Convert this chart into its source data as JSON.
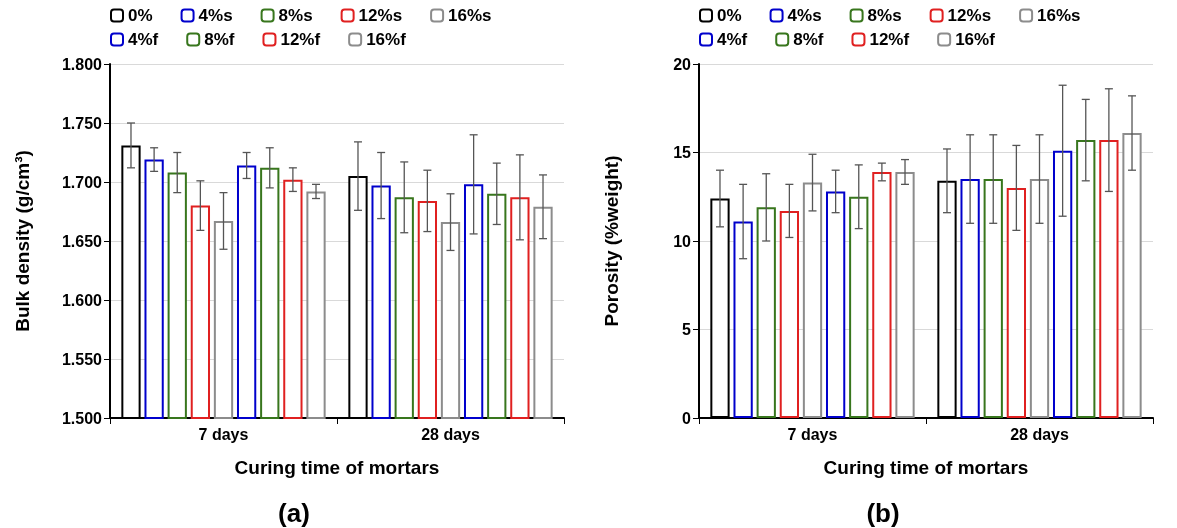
{
  "chart_data": [
    {
      "type": "bar",
      "categories": [
        "7 days",
        "28 days"
      ],
      "xlabel": "Curing time of mortars",
      "ylabel": "Bulk density (g/cm³)",
      "ylim": [
        1.5,
        1.8
      ],
      "yticks": [
        {
          "value": 1.5,
          "label": "1.500"
        },
        {
          "value": 1.55,
          "label": "1.550"
        },
        {
          "value": 1.6,
          "label": "1.600"
        },
        {
          "value": 1.65,
          "label": "1.650"
        },
        {
          "value": 1.7,
          "label": "1.700"
        },
        {
          "value": 1.75,
          "label": "1.750"
        },
        {
          "value": 1.8,
          "label": "1.800"
        }
      ],
      "grid": "y",
      "legend": "top",
      "annotations": [
        "(a)"
      ],
      "series": [
        {
          "name": "0%",
          "color": "#000000",
          "values": [
            1.731,
            1.705
          ],
          "errors": [
            0.019,
            0.029
          ]
        },
        {
          "name": "4%s",
          "color": "#0000cc",
          "values": [
            1.719,
            1.697
          ],
          "errors": [
            0.01,
            0.028
          ]
        },
        {
          "name": "8%s",
          "color": "#38761d",
          "values": [
            1.708,
            1.687
          ],
          "errors": [
            0.017,
            0.03
          ]
        },
        {
          "name": "12%s",
          "color": "#e02020",
          "values": [
            1.68,
            1.684
          ],
          "errors": [
            0.021,
            0.026
          ]
        },
        {
          "name": "16%s",
          "color": "#8c8c8c",
          "values": [
            1.667,
            1.666
          ],
          "errors": [
            0.024,
            0.024
          ]
        },
        {
          "name": "4%f",
          "color": "#0000cc",
          "values": [
            1.714,
            1.698
          ],
          "errors": [
            0.011,
            0.042
          ]
        },
        {
          "name": "8%f",
          "color": "#38761d",
          "values": [
            1.712,
            1.69
          ],
          "errors": [
            0.017,
            0.026
          ]
        },
        {
          "name": "12%f",
          "color": "#e02020",
          "values": [
            1.702,
            1.687
          ],
          "errors": [
            0.01,
            0.036
          ]
        },
        {
          "name": "16%f",
          "color": "#8c8c8c",
          "values": [
            1.692,
            1.679
          ],
          "errors": [
            0.006,
            0.027
          ]
        }
      ]
    },
    {
      "type": "bar",
      "categories": [
        "7 days",
        "28 days"
      ],
      "xlabel": "Curing time of mortars",
      "ylabel": "Porosity (%weight)",
      "ylim": [
        0,
        20
      ],
      "yticks": [
        0,
        5,
        10,
        15,
        20
      ],
      "grid": "y",
      "legend": "top",
      "annotations": [
        "(b)"
      ],
      "series": [
        {
          "name": "0%",
          "color": "#000000",
          "values": [
            12.4,
            13.4
          ],
          "errors": [
            1.6,
            1.8
          ]
        },
        {
          "name": "4%s",
          "color": "#0000cc",
          "values": [
            11.1,
            13.5
          ],
          "errors": [
            2.1,
            2.5
          ]
        },
        {
          "name": "8%s",
          "color": "#38761d",
          "values": [
            11.9,
            13.5
          ],
          "errors": [
            1.9,
            2.5
          ]
        },
        {
          "name": "12%s",
          "color": "#e02020",
          "values": [
            11.7,
            13.0
          ],
          "errors": [
            1.5,
            2.4
          ]
        },
        {
          "name": "16%s",
          "color": "#8c8c8c",
          "values": [
            13.3,
            13.5
          ],
          "errors": [
            1.6,
            2.5
          ]
        },
        {
          "name": "4%f",
          "color": "#0000cc",
          "values": [
            12.8,
            15.1
          ],
          "errors": [
            1.2,
            3.7
          ]
        },
        {
          "name": "8%f",
          "color": "#38761d",
          "values": [
            12.5,
            15.7
          ],
          "errors": [
            1.8,
            2.3
          ]
        },
        {
          "name": "12%f",
          "color": "#e02020",
          "values": [
            13.9,
            15.7
          ],
          "errors": [
            0.5,
            2.9
          ]
        },
        {
          "name": "16%f",
          "color": "#8c8c8c",
          "values": [
            13.9,
            16.1
          ],
          "errors": [
            0.7,
            2.1
          ]
        }
      ]
    }
  ]
}
